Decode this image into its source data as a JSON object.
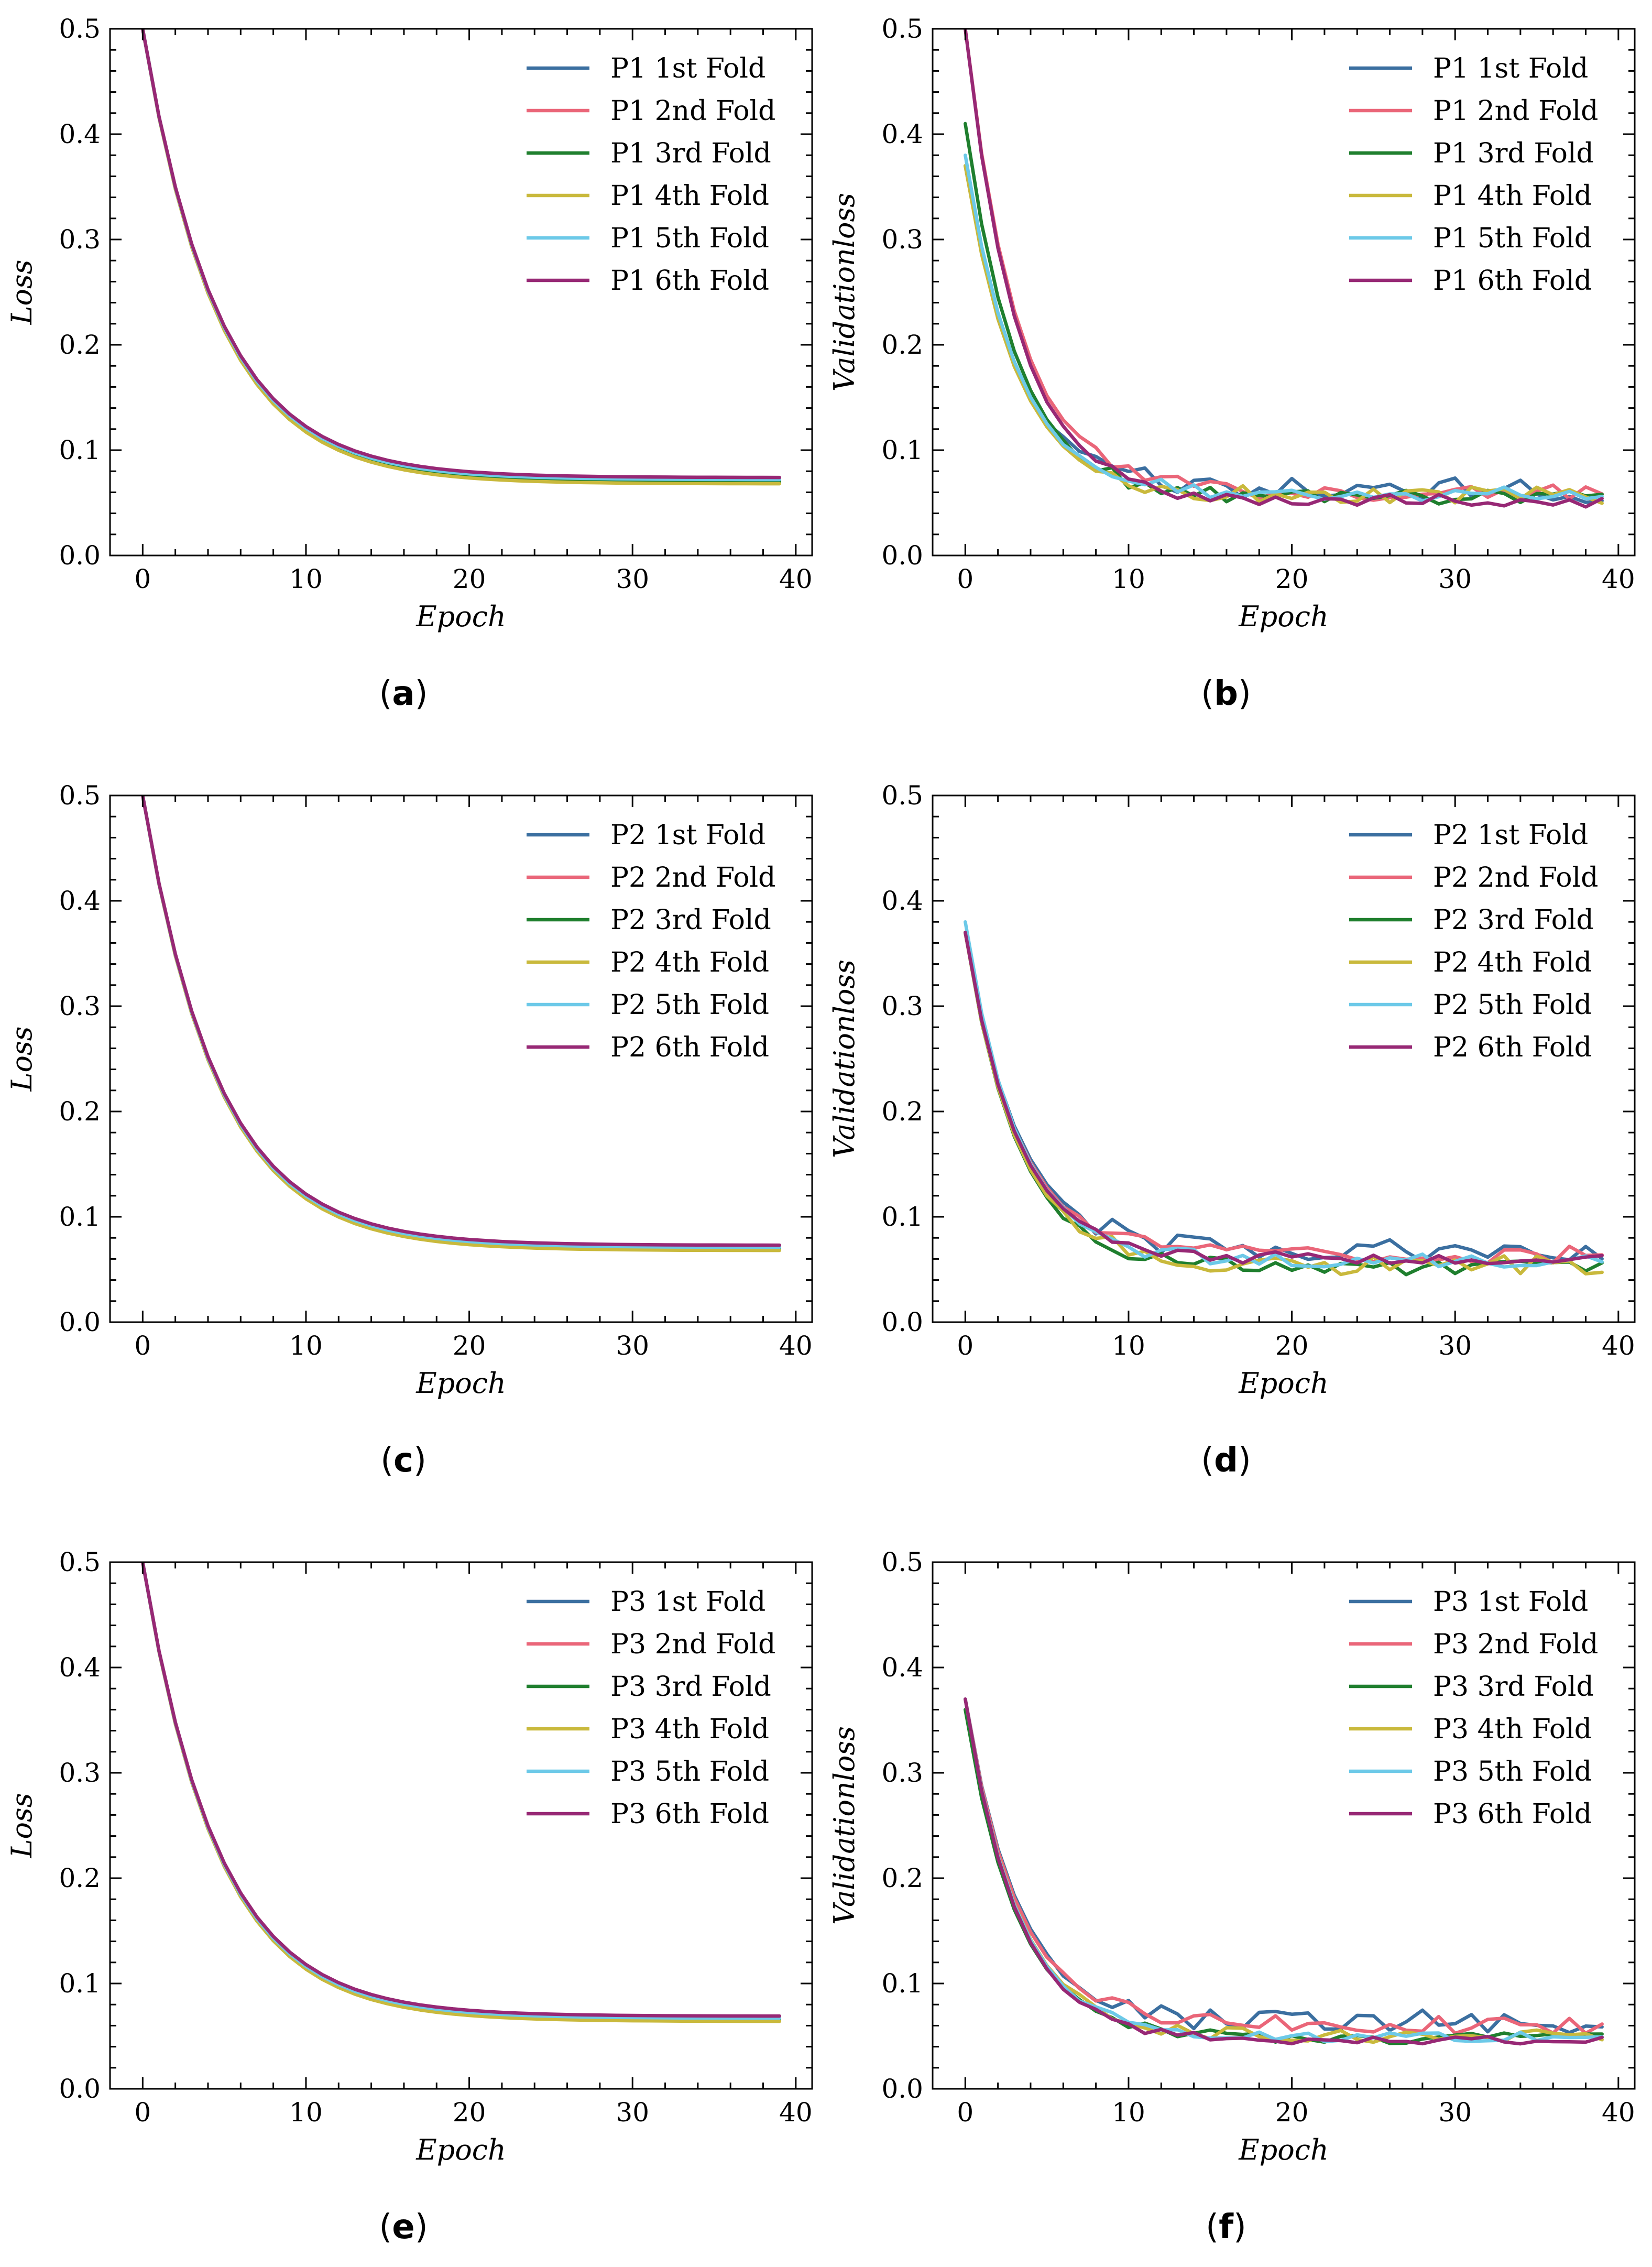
{
  "figure": {
    "colors": {
      "1st": "#3b6fa0",
      "2nd": "#ea6679",
      "3rd": "#1f7f2e",
      "4th": "#c9b93c",
      "5th": "#6cc9e8",
      "6th": "#972875"
    }
  },
  "chart_data": [
    {
      "type": "line",
      "panel": "(a)",
      "caption_letter": "a",
      "xlabel": "Epoch",
      "ylabel": "Loss",
      "xlim": [
        -2,
        41
      ],
      "ylim": [
        0.0,
        0.5
      ],
      "xticks": [
        0,
        10,
        20,
        30,
        40
      ],
      "yticks": [
        0.0,
        0.1,
        0.2,
        0.3,
        0.4,
        0.5
      ],
      "legend_position": "top-right",
      "kind": "train",
      "series": [
        {
          "name": "P1 1st Fold",
          "final": 0.071
        },
        {
          "name": "P1 2nd Fold",
          "final": 0.073
        },
        {
          "name": "P1 3rd Fold",
          "final": 0.07
        },
        {
          "name": "P1 4th Fold",
          "final": 0.068
        },
        {
          "name": "P1 5th Fold",
          "final": 0.072
        },
        {
          "name": "P1 6th Fold",
          "final": 0.074
        }
      ]
    },
    {
      "type": "line",
      "panel": "(b)",
      "caption_letter": "b",
      "xlabel": "Epoch",
      "ylabel": "Validationloss",
      "xlim": [
        -2,
        41
      ],
      "ylim": [
        0.0,
        0.5
      ],
      "xticks": [
        0,
        10,
        20,
        30,
        40
      ],
      "yticks": [
        0.0,
        0.1,
        0.2,
        0.3,
        0.4,
        0.5
      ],
      "legend_position": "top-right",
      "kind": "val",
      "series": [
        {
          "name": "P1 1st Fold",
          "start": 0.37,
          "final": 0.062,
          "noise": 0.012
        },
        {
          "name": "P1 2nd Fold",
          "start": 0.5,
          "final": 0.06,
          "noise": 0.008
        },
        {
          "name": "P1 3rd Fold",
          "start": 0.41,
          "final": 0.055,
          "noise": 0.007
        },
        {
          "name": "P1 4th Fold",
          "start": 0.37,
          "final": 0.057,
          "noise": 0.008
        },
        {
          "name": "P1 5th Fold",
          "start": 0.38,
          "final": 0.058,
          "noise": 0.007
        },
        {
          "name": "P1 6th Fold",
          "start": 0.5,
          "final": 0.052,
          "noise": 0.006
        }
      ]
    },
    {
      "type": "line",
      "panel": "(c)",
      "caption_letter": "c",
      "xlabel": "Epoch",
      "ylabel": "Loss",
      "xlim": [
        -2,
        41
      ],
      "ylim": [
        0.0,
        0.5
      ],
      "xticks": [
        0,
        10,
        20,
        30,
        40
      ],
      "yticks": [
        0.0,
        0.1,
        0.2,
        0.3,
        0.4,
        0.5
      ],
      "legend_position": "top-right",
      "kind": "train",
      "series": [
        {
          "name": "P2 1st Fold",
          "final": 0.07
        },
        {
          "name": "P2 2nd Fold",
          "final": 0.072
        },
        {
          "name": "P2 3rd Fold",
          "final": 0.069
        },
        {
          "name": "P2 4th Fold",
          "final": 0.068
        },
        {
          "name": "P2 5th Fold",
          "final": 0.071
        },
        {
          "name": "P2 6th Fold",
          "final": 0.073
        }
      ]
    },
    {
      "type": "line",
      "panel": "(d)",
      "caption_letter": "d",
      "xlabel": "Epoch",
      "ylabel": "Validationloss",
      "xlim": [
        -2,
        41
      ],
      "ylim": [
        0.0,
        0.5
      ],
      "xticks": [
        0,
        10,
        20,
        30,
        40
      ],
      "yticks": [
        0.0,
        0.1,
        0.2,
        0.3,
        0.4,
        0.5
      ],
      "legend_position": "top-right",
      "kind": "val",
      "series": [
        {
          "name": "P2 1st Fold",
          "start": 0.37,
          "final": 0.068,
          "noise": 0.012
        },
        {
          "name": "P2 2nd Fold",
          "start": 0.37,
          "final": 0.064,
          "noise": 0.008
        },
        {
          "name": "P2 3rd Fold",
          "start": 0.37,
          "final": 0.052,
          "noise": 0.007
        },
        {
          "name": "P2 4th Fold",
          "start": 0.37,
          "final": 0.054,
          "noise": 0.009
        },
        {
          "name": "P2 5th Fold",
          "start": 0.38,
          "final": 0.058,
          "noise": 0.007
        },
        {
          "name": "P2 6th Fold",
          "start": 0.37,
          "final": 0.06,
          "noise": 0.006
        }
      ]
    },
    {
      "type": "line",
      "panel": "(e)",
      "caption_letter": "e",
      "xlabel": "Epoch",
      "ylabel": "Loss",
      "xlim": [
        -2,
        41
      ],
      "ylim": [
        0.0,
        0.5
      ],
      "xticks": [
        0,
        10,
        20,
        30,
        40
      ],
      "yticks": [
        0.0,
        0.1,
        0.2,
        0.3,
        0.4,
        0.5
      ],
      "legend_position": "top-right",
      "kind": "train",
      "series": [
        {
          "name": "P3 1st Fold",
          "final": 0.066
        },
        {
          "name": "P3 2nd Fold",
          "final": 0.068
        },
        {
          "name": "P3 3rd Fold",
          "final": 0.065
        },
        {
          "name": "P3 4th Fold",
          "final": 0.064
        },
        {
          "name": "P3 5th Fold",
          "final": 0.067
        },
        {
          "name": "P3 6th Fold",
          "final": 0.069
        }
      ]
    },
    {
      "type": "line",
      "panel": "(f)",
      "caption_letter": "f",
      "xlabel": "Epoch",
      "ylabel": "Validationloss",
      "xlim": [
        -2,
        41
      ],
      "ylim": [
        0.0,
        0.5
      ],
      "xticks": [
        0,
        10,
        20,
        30,
        40
      ],
      "yticks": [
        0.0,
        0.1,
        0.2,
        0.3,
        0.4,
        0.5
      ],
      "legend_position": "top-right",
      "kind": "val",
      "series": [
        {
          "name": "P3 1st Fold",
          "start": 0.37,
          "final": 0.064,
          "noise": 0.011
        },
        {
          "name": "P3 2nd Fold",
          "start": 0.37,
          "final": 0.06,
          "noise": 0.009
        },
        {
          "name": "P3 3rd Fold",
          "start": 0.36,
          "final": 0.048,
          "noise": 0.005
        },
        {
          "name": "P3 4th Fold",
          "start": 0.37,
          "final": 0.05,
          "noise": 0.006
        },
        {
          "name": "P3 5th Fold",
          "start": 0.37,
          "final": 0.049,
          "noise": 0.005
        },
        {
          "name": "P3 6th Fold",
          "start": 0.37,
          "final": 0.046,
          "noise": 0.004
        }
      ]
    }
  ]
}
